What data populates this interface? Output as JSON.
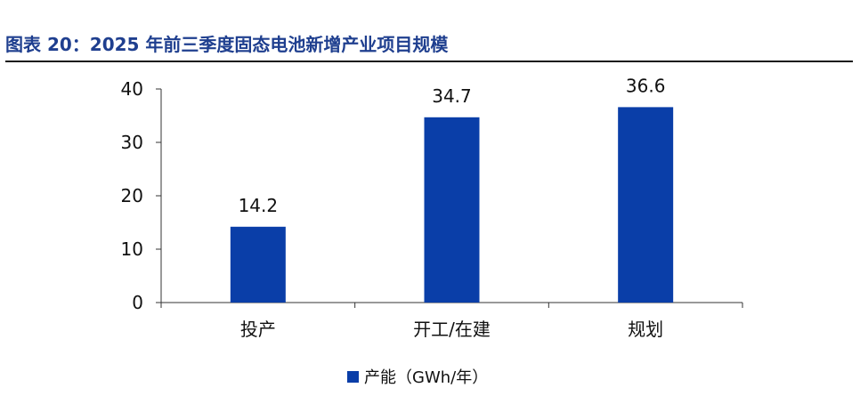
{
  "header": {
    "title": "图表 20：2025 年前三季度固态电池新增产业项目规模"
  },
  "colors": {
    "bar": "#0a3ea8",
    "title": "#1f3f8f",
    "axis": "#333333"
  },
  "chart_data": {
    "type": "bar",
    "title": "",
    "xlabel": "",
    "ylabel": "",
    "categories": [
      "投产",
      "开工/在建",
      "规划"
    ],
    "series": [
      {
        "name": "产能（GWh/年）",
        "values": [
          14.2,
          34.7,
          36.6
        ]
      }
    ],
    "ylim": [
      0,
      40
    ],
    "yticks": [
      0,
      10,
      20,
      30,
      40
    ],
    "grid": false,
    "legend": "bottom-center",
    "data_labels": [
      "14.2",
      "34.7",
      "36.6"
    ]
  }
}
